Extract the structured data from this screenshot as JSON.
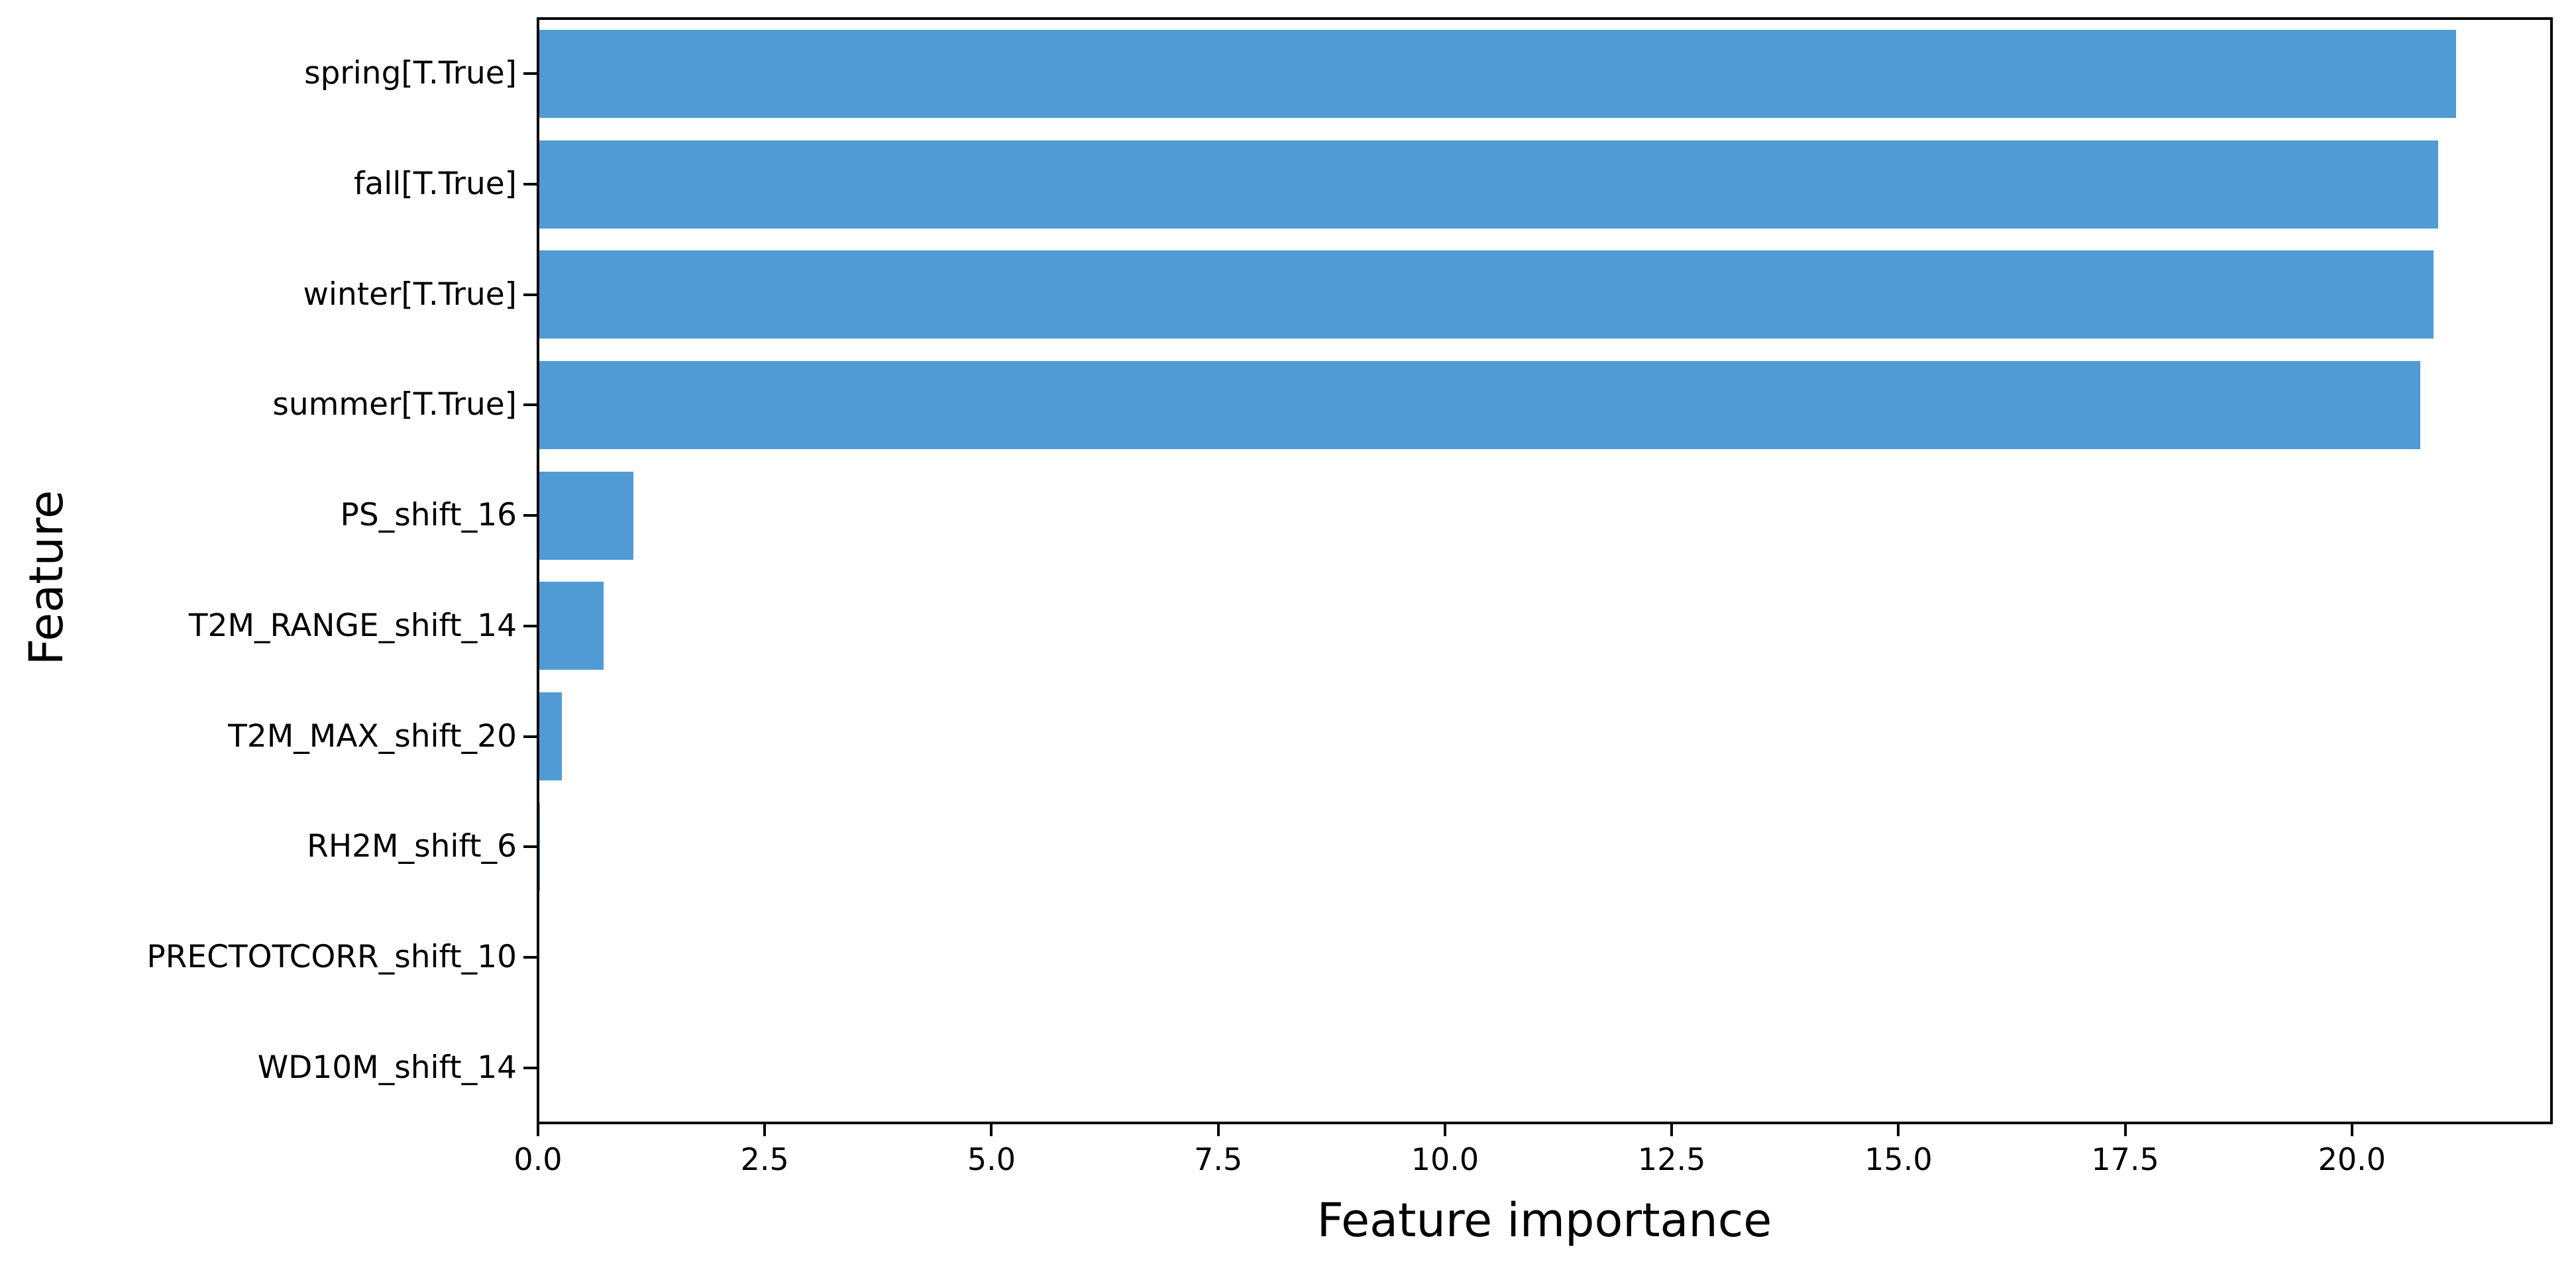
{
  "chart_data": {
    "type": "bar",
    "orientation": "horizontal",
    "title": "",
    "xlabel": "Feature importance",
    "ylabel": "Feature",
    "categories": [
      "spring[T.True]",
      "fall[T.True]",
      "winter[T.True]",
      "summer[T.True]",
      "PS_shift_16",
      "T2M_RANGE_shift_14",
      "T2M_MAX_shift_20",
      "RH2M_shift_6",
      "PRECTOTCORR_shift_10",
      "WD10M_shift_14"
    ],
    "values": [
      21.15,
      20.95,
      20.9,
      20.75,
      1.05,
      0.72,
      0.26,
      0.02,
      0.015,
      0.01
    ],
    "x_tick_labels": [
      "0.0",
      "2.5",
      "5.0",
      "7.5",
      "10.0",
      "12.5",
      "15.0",
      "17.5",
      "20.0"
    ],
    "x_tick_values": [
      0,
      2.5,
      5,
      7.5,
      10,
      12.5,
      15,
      17.5,
      20
    ],
    "xlim": [
      0,
      22.2
    ],
    "grid": false,
    "legend": null,
    "bar_color": "#509BD4",
    "frame_color": "#000000",
    "text_color": "#000000",
    "background_color": "#ffffff"
  }
}
